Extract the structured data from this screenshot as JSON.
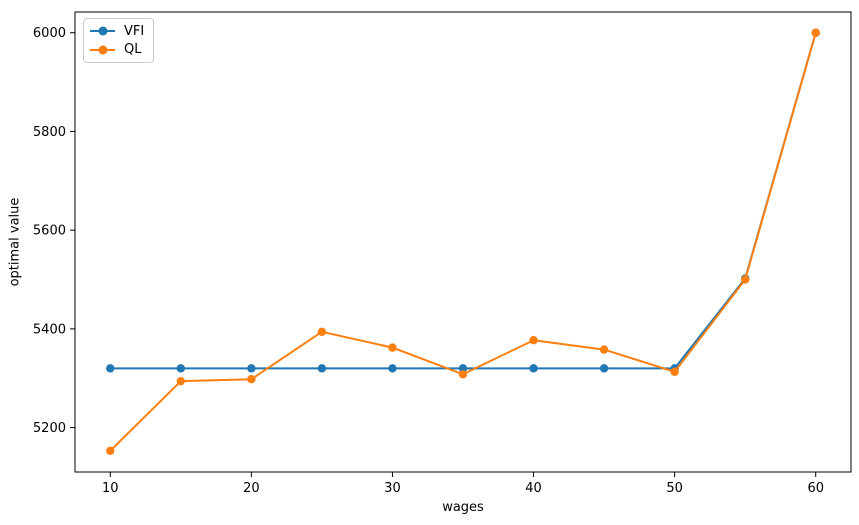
{
  "figure": {
    "background": "#ffffff",
    "text_color": "#000000",
    "spine_color": "#000000",
    "xlabel": "wages",
    "ylabel": "optimal value",
    "legend": {
      "position": "upper left",
      "entries": [
        {
          "label": "VFI",
          "color": "#1f77b4",
          "marker": "circle"
        },
        {
          "label": "QL",
          "color": "#ff7f0e",
          "marker": "circle"
        }
      ]
    }
  },
  "chart_data": {
    "type": "line",
    "title": "",
    "xlabel": "wages",
    "ylabel": "optimal value",
    "x": [
      10,
      15,
      20,
      25,
      30,
      35,
      40,
      45,
      50,
      55,
      60
    ],
    "series": [
      {
        "name": "VFI",
        "color": "#1f77b4",
        "marker": "circle",
        "values": [
          5320,
          5320,
          5320,
          5320,
          5320,
          5320,
          5320,
          5320,
          5320,
          5502,
          6000
        ]
      },
      {
        "name": "QL",
        "color": "#ff7f0e",
        "marker": "circle",
        "values": [
          5153,
          5294,
          5298,
          5394,
          5362,
          5308,
          5377,
          5358,
          5313,
          5500,
          6000
        ]
      }
    ],
    "xticks": [
      10,
      20,
      30,
      40,
      50,
      60
    ],
    "yticks": [
      5200,
      5400,
      5600,
      5800,
      6000
    ],
    "xlim": [
      7.5,
      62.5
    ],
    "ylim": [
      5110,
      6042
    ],
    "grid": false,
    "legend_position": "upper left"
  }
}
